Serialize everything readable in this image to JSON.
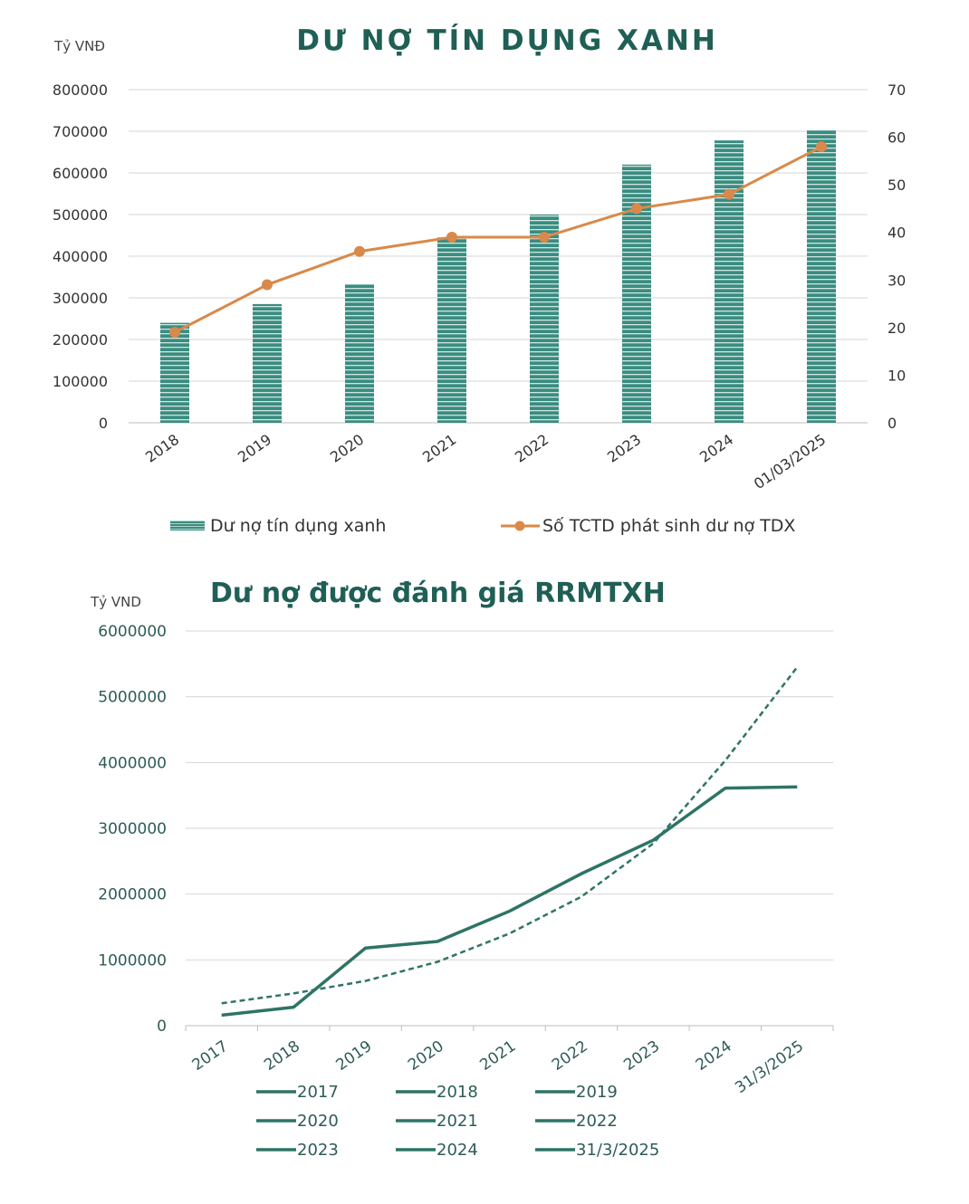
{
  "chart_data": [
    {
      "type": "bar",
      "title": "DƯ NỢ TÍN DỤNG XANH",
      "y_unit": "Tỷ VNĐ",
      "categories": [
        "2018",
        "2019",
        "2020",
        "2021",
        "2022",
        "2023",
        "2024",
        "01/03/2025"
      ],
      "ylim": [
        0,
        800000
      ],
      "y_ticks": [
        "0",
        "100000",
        "200000",
        "300000",
        "400000",
        "500000",
        "600000",
        "700000",
        "800000"
      ],
      "y2lim": [
        0,
        70
      ],
      "y2_ticks": [
        "0",
        "10",
        "20",
        "30",
        "40",
        "50",
        "60",
        "70"
      ],
      "series": [
        {
          "name": "Dư nợ tín dụng xanh",
          "type": "bar",
          "axis": "left",
          "values": [
            240000,
            285000,
            332000,
            445000,
            500000,
            620000,
            678000,
            703000
          ],
          "color": "#3a8c80"
        },
        {
          "name": "Số TCTD  phát sinh dư nợ TDX",
          "type": "line",
          "axis": "right",
          "values": [
            19,
            29,
            36,
            39,
            39,
            45,
            48,
            58
          ],
          "color": "#d9894a"
        }
      ],
      "grid": true,
      "legend_position": "bottom"
    },
    {
      "type": "line",
      "title": "Dư nợ được đánh giá RRMTXH",
      "y_unit": "Tỷ VND",
      "categories": [
        "2017",
        "2018",
        "2019",
        "2020",
        "2021",
        "2022",
        "2023",
        "2024",
        "31/3/2025"
      ],
      "ylim": [
        0,
        6000000
      ],
      "y_ticks": [
        "0",
        "1000000",
        "2000000",
        "3000000",
        "4000000",
        "5000000",
        "6000000"
      ],
      "values": [
        160000,
        280000,
        1180000,
        1280000,
        1740000,
        2310000,
        2820000,
        3610000,
        3630000
      ],
      "trendline_values": [
        340000,
        490000,
        680000,
        970000,
        1400000,
        1960000,
        2770000,
        4030000,
        5450000
      ],
      "color": "#2e7466",
      "grid": true,
      "legend_entries": [
        "2017",
        "2018",
        "2019",
        "2020",
        "2021",
        "2022",
        "2023",
        "2024",
        "31/3/2025"
      ],
      "legend_position": "bottom"
    }
  ]
}
